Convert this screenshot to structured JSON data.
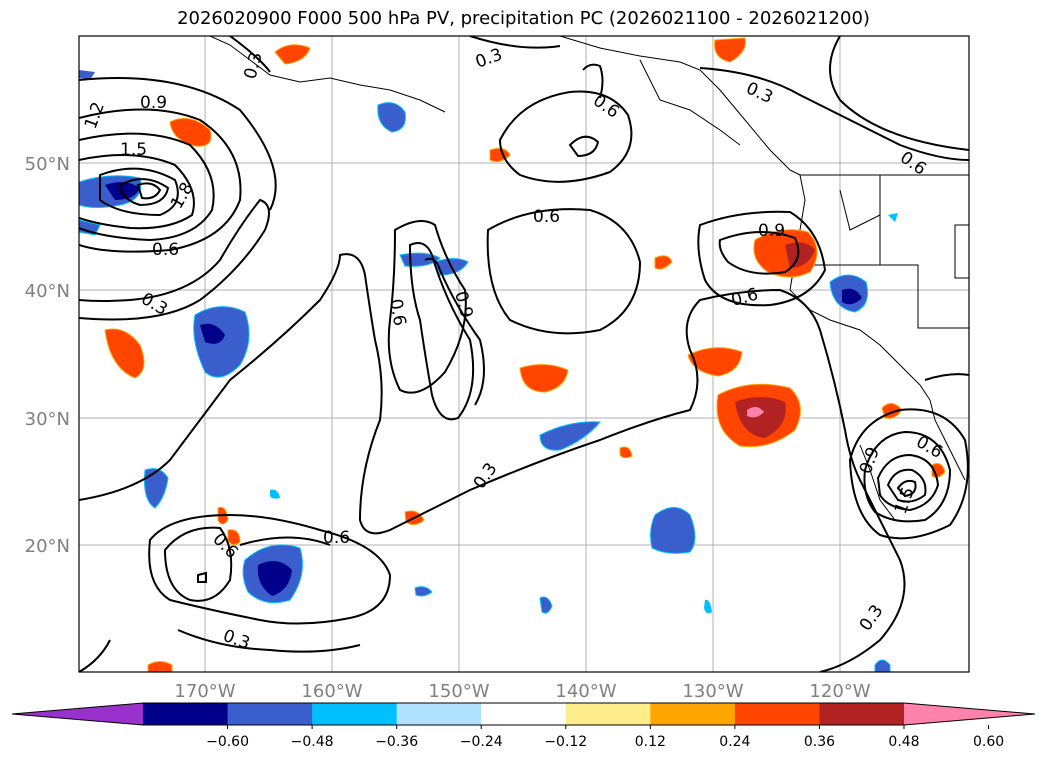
{
  "title": "2026020900 F000 500 hPa PV, precipitation PC (2026021100 - 2026021200)",
  "axes": {
    "lat_labels": [
      "50°N",
      "40°N",
      "30°N",
      "20°N"
    ],
    "lon_labels": [
      "170°W",
      "160°W",
      "150°W",
      "140°W",
      "130°W",
      "120°W"
    ]
  },
  "contour_labels": [
    "1.2",
    "0.9",
    "1.5",
    "1.8",
    "0.6",
    "0.3",
    "0.3",
    "0.6",
    "0.3",
    "0.6",
    "0.3",
    "0.6",
    "0.9",
    "0.6",
    "0.9",
    "0.6",
    "0.3",
    "0.6",
    "0.6",
    "0.3",
    "0.9",
    "0.6",
    "1.5",
    "0.3"
  ],
  "colorbar": {
    "ticks": [
      "−0.60",
      "−0.48",
      "−0.36",
      "−0.24",
      "−0.12",
      "0.12",
      "0.24",
      "0.36",
      "0.48",
      "0.60"
    ],
    "colors": [
      "#9932cc",
      "#00008b",
      "#3a5fcd",
      "#00bfff",
      "#b0e2ff",
      "#ffffff",
      "#ffec8b",
      "#ffa500",
      "#ff4500",
      "#b22222",
      "#ff82ab"
    ]
  }
}
